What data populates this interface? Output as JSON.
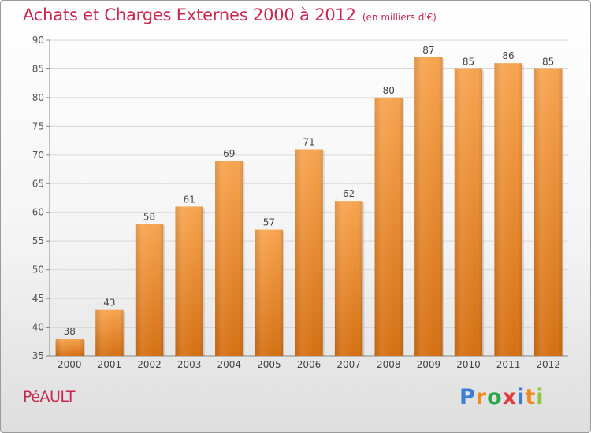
{
  "title": "Achats et Charges Externes 2000 à 2012",
  "unit_label": "(en milliers d'€)",
  "commune": "PéAULT",
  "logo": {
    "text": "Proxiti",
    "letter_colors": [
      "#3b7fd4",
      "#f08a1c",
      "#2aa84a",
      "#e23b3b",
      "#3b7fd4",
      "#f08a1c",
      "#8dc63f"
    ]
  },
  "colors": {
    "title": "#c8284f",
    "bar_top": "#f7a44f",
    "bar_bottom": "#d56f12",
    "grid": "#d8d8d8"
  },
  "chart_data": {
    "type": "bar",
    "categories": [
      "2000",
      "2001",
      "2002",
      "2003",
      "2004",
      "2005",
      "2006",
      "2007",
      "2008",
      "2009",
      "2010",
      "2011",
      "2012"
    ],
    "values": [
      38,
      43,
      58,
      61,
      69,
      57,
      71,
      62,
      80,
      87,
      85,
      86,
      85
    ],
    "ylim": [
      35,
      90
    ],
    "yticks": [
      35,
      40,
      45,
      50,
      55,
      60,
      65,
      70,
      75,
      80,
      85,
      90
    ],
    "grid": true
  }
}
